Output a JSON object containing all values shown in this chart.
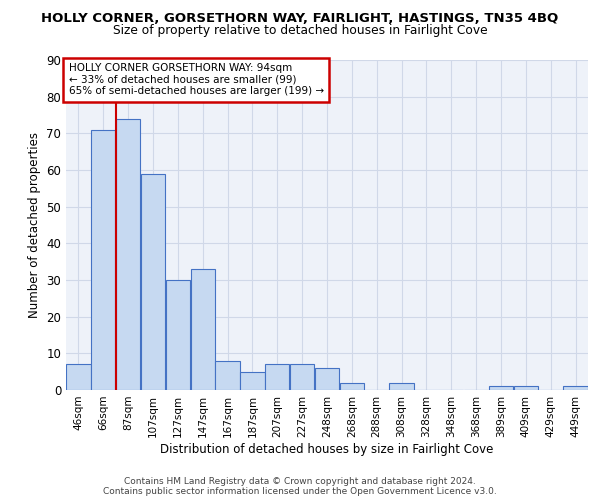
{
  "title": "HOLLY CORNER, GORSETHORN WAY, FAIRLIGHT, HASTINGS, TN35 4BQ",
  "subtitle": "Size of property relative to detached houses in Fairlight Cove",
  "xlabel": "Distribution of detached houses by size in Fairlight Cove",
  "ylabel": "Number of detached properties",
  "footer1": "Contains HM Land Registry data © Crown copyright and database right 2024.",
  "footer2": "Contains public sector information licensed under the Open Government Licence v3.0.",
  "bins": [
    "46sqm",
    "66sqm",
    "87sqm",
    "107sqm",
    "127sqm",
    "147sqm",
    "167sqm",
    "187sqm",
    "207sqm",
    "227sqm",
    "248sqm",
    "268sqm",
    "288sqm",
    "308sqm",
    "328sqm",
    "348sqm",
    "368sqm",
    "389sqm",
    "409sqm",
    "429sqm",
    "449sqm"
  ],
  "values": [
    7,
    71,
    74,
    59,
    30,
    33,
    8,
    5,
    7,
    7,
    6,
    2,
    0,
    2,
    0,
    0,
    0,
    1,
    1,
    0,
    1
  ],
  "bar_color": "#c6d9f1",
  "bar_edge_color": "#4472c4",
  "grid_color": "#d0d8e8",
  "background_color": "#eef2f9",
  "marker_line_index": 2,
  "annotation_text": "HOLLY CORNER GORSETHORN WAY: 94sqm\n← 33% of detached houses are smaller (99)\n65% of semi-detached houses are larger (199) →",
  "annotation_box_edge": "#cc0000",
  "marker_line_color": "#cc0000",
  "ylim": [
    0,
    90
  ],
  "yticks": [
    0,
    10,
    20,
    30,
    40,
    50,
    60,
    70,
    80,
    90
  ]
}
